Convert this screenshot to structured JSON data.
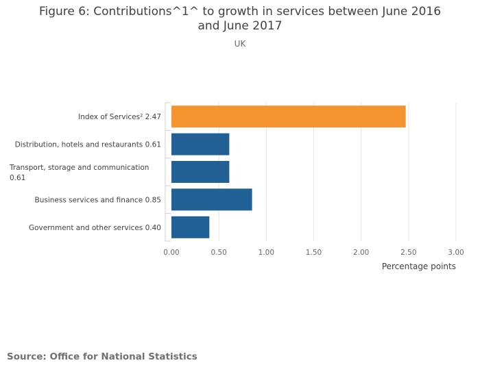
{
  "chart_data": {
    "type": "bar",
    "orientation": "horizontal",
    "title": "Figure 6: Contributions^1^ to growth in services between June 2016 and June 2017",
    "subtitle": "UK",
    "xlabel": "Percentage points",
    "ylabel": "",
    "xlim": [
      0,
      3
    ],
    "xticks": [
      0,
      0.5,
      1,
      1.5,
      2,
      2.5,
      3
    ],
    "xtick_labels": [
      "0.00",
      "0.50",
      "1.00",
      "1.50",
      "2.00",
      "2.50",
      "3.00"
    ],
    "grid": true,
    "legend": "none",
    "categories": [
      "Index of Services² 2.47",
      "Distribution, hotels and restaurants 0.61",
      "Transport, storage and communication 0.61",
      "Business services and finance 0.85",
      "Government and other services 0.40"
    ],
    "category_label_lines": [
      [
        "Index of Services² 2.47"
      ],
      [
        "Distribution, hotels and restaurants 0.61"
      ],
      [
        "Transport, storage and communication",
        "0.61"
      ],
      [
        "Business services and finance 0.85"
      ],
      [
        "Government and other services 0.40"
      ]
    ],
    "values": [
      2.47,
      0.61,
      0.61,
      0.85,
      0.4
    ],
    "bar_colors": [
      "#f39431",
      "#206095",
      "#206095",
      "#206095",
      "#206095"
    ]
  },
  "footer": {
    "source": "Source: Office for National Statistics"
  }
}
